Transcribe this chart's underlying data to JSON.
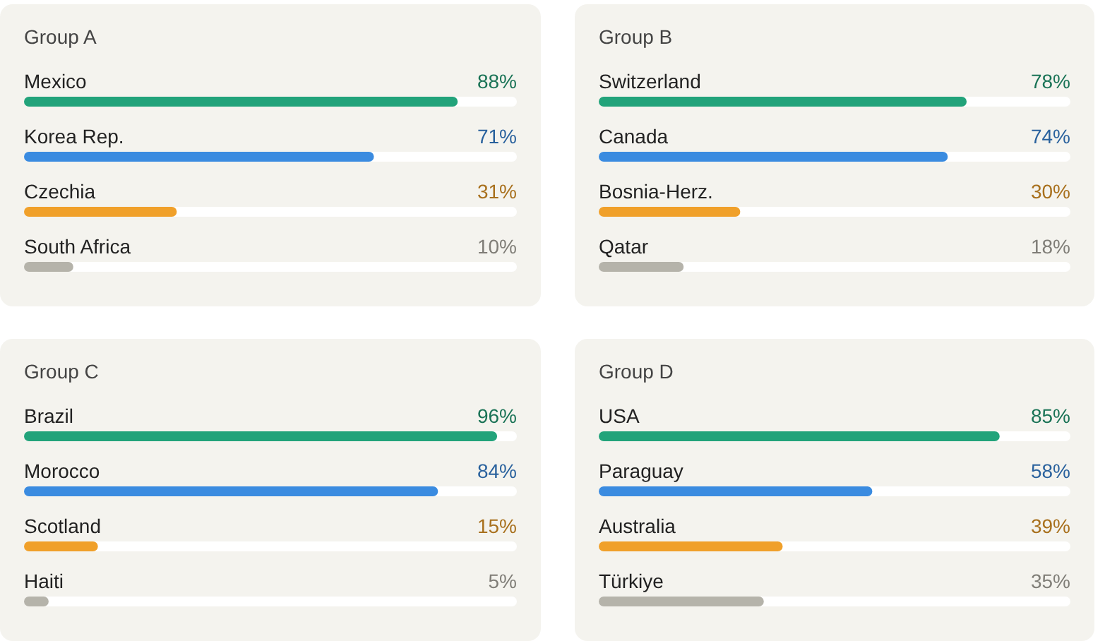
{
  "chart_data": [
    {
      "type": "bar",
      "orientation": "horizontal",
      "title": "Group A",
      "categories": [
        "Mexico",
        "Korea Rep.",
        "Czechia",
        "South Africa"
      ],
      "values": [
        88,
        71,
        31,
        10
      ],
      "value_labels": [
        "88%",
        "71%",
        "31%",
        "10%"
      ],
      "colors": [
        "#22a37a",
        "#3a8be0",
        "#f0a02a",
        "#b5b3aa"
      ],
      "xlim": [
        0,
        100
      ],
      "tick_labels": "y"
    },
    {
      "type": "bar",
      "orientation": "horizontal",
      "title": "Group B",
      "categories": [
        "Switzerland",
        "Canada",
        "Bosnia-Herz.",
        "Qatar"
      ],
      "values": [
        78,
        74,
        30,
        18
      ],
      "value_labels": [
        "78%",
        "74%",
        "30%",
        "18%"
      ],
      "colors": [
        "#22a37a",
        "#3a8be0",
        "#f0a02a",
        "#b5b3aa"
      ],
      "xlim": [
        0,
        100
      ],
      "tick_labels": "y"
    },
    {
      "type": "bar",
      "orientation": "horizontal",
      "title": "Group C",
      "categories": [
        "Brazil",
        "Morocco",
        "Scotland",
        "Haiti"
      ],
      "values": [
        96,
        84,
        15,
        5
      ],
      "value_labels": [
        "96%",
        "84%",
        "15%",
        "5%"
      ],
      "colors": [
        "#22a37a",
        "#3a8be0",
        "#f0a02a",
        "#b5b3aa"
      ],
      "xlim": [
        0,
        100
      ],
      "tick_labels": "y"
    },
    {
      "type": "bar",
      "orientation": "horizontal",
      "title": "Group D",
      "categories": [
        "USA",
        "Paraguay",
        "Australia",
        "Türkiye"
      ],
      "values": [
        85,
        58,
        39,
        35
      ],
      "value_labels": [
        "85%",
        "58%",
        "39%",
        "35%"
      ],
      "colors": [
        "#22a37a",
        "#3a8be0",
        "#f0a02a",
        "#b5b3aa"
      ],
      "xlim": [
        0,
        100
      ],
      "tick_labels": "y"
    }
  ]
}
